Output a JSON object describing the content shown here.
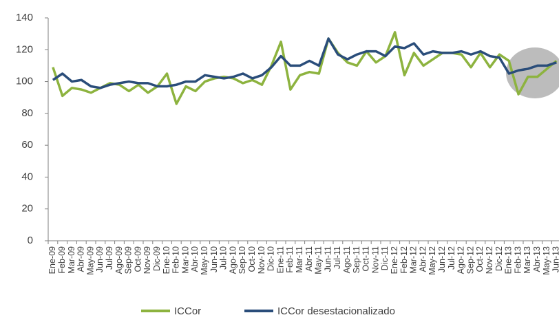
{
  "chart_data": {
    "type": "line",
    "categories": [
      "Ene-09",
      "Feb-09",
      "Mar-09",
      "Abr-09",
      "May-09",
      "Jun-09",
      "Jul-09",
      "Ago-09",
      "Sep-09",
      "Oct-09",
      "Nov-09",
      "Dic-09",
      "Ene-10",
      "Feb-10",
      "Mar-10",
      "Abr-10",
      "May-10",
      "Jun-10",
      "Jul-10",
      "Ago-10",
      "Sep-10",
      "Oct-10",
      "Nov-10",
      "Dic-10",
      "Ene-11",
      "Feb-11",
      "Mar-11",
      "Abr-11",
      "May-11",
      "Jun-11",
      "Jul-11",
      "Ago-11",
      "Sep-11",
      "Oct-11",
      "Nov-11",
      "Dic-11",
      "Ene-12",
      "Feb-12",
      "Mar-12",
      "Abr-12",
      "May-12",
      "Jun-12",
      "Jul-12",
      "Ago-12",
      "Sep-12",
      "Oct-12",
      "Nov-12",
      "Dic-12",
      "Ene-13",
      "Feb-13",
      "Mar-13",
      "Abr-13",
      "May-13",
      "Jun-13"
    ],
    "series": [
      {
        "name": "ICCor",
        "color": "#8db33f",
        "values": [
          109,
          91,
          96,
          95,
          93,
          96,
          99,
          98,
          94,
          98,
          93,
          97,
          105,
          86,
          97,
          94,
          100,
          102,
          103,
          102,
          99,
          101,
          98,
          110,
          125,
          95,
          104,
          106,
          105,
          127,
          118,
          112,
          110,
          119,
          112,
          116,
          131,
          104,
          118,
          110,
          114,
          118,
          118,
          117,
          109,
          118,
          109,
          117,
          113,
          92,
          103,
          103,
          108,
          113
        ]
      },
      {
        "name": "ICCor desestacionalizado",
        "color": "#2a4d7a",
        "values": [
          101,
          105,
          100,
          101,
          97,
          96,
          98,
          99,
          100,
          99,
          99,
          97,
          97,
          98,
          100,
          100,
          104,
          103,
          102,
          103,
          105,
          102,
          104,
          109,
          116,
          110,
          110,
          113,
          110,
          127,
          117,
          114,
          117,
          119,
          119,
          116,
          122,
          121,
          124,
          117,
          119,
          118,
          118,
          119,
          117,
          119,
          116,
          115,
          105,
          107,
          108,
          110,
          110,
          112
        ]
      }
    ],
    "ylim": [
      0,
      140
    ],
    "yticks": [
      0,
      20,
      40,
      60,
      80,
      100,
      120,
      140
    ],
    "grid": false,
    "legend": "bottom"
  }
}
